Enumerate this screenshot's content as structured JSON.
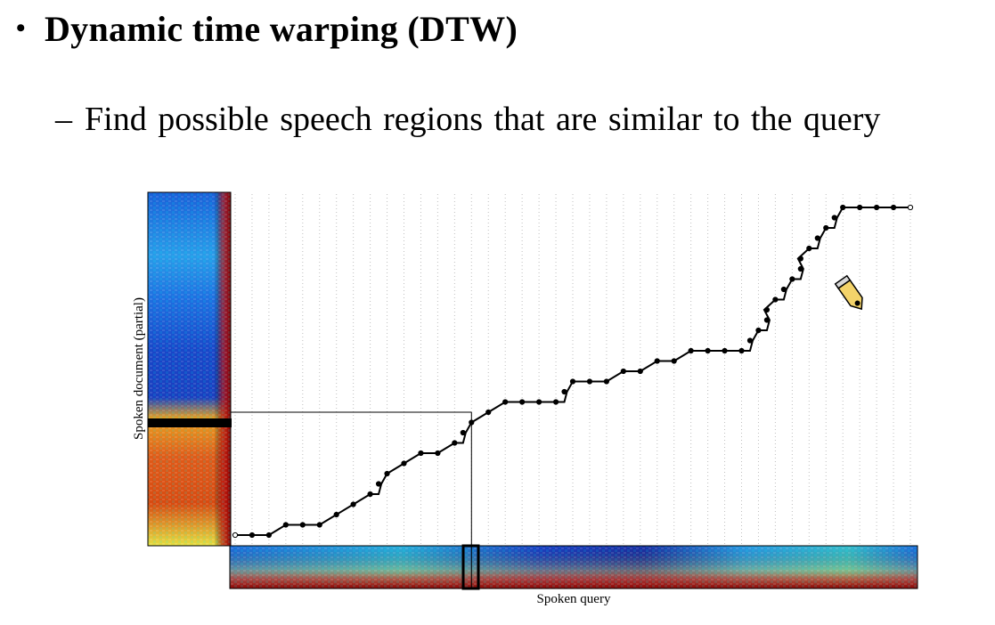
{
  "slide": {
    "bullet": "•",
    "title": "Dynamic time warping (DTW)",
    "sub_dash": "–",
    "subtitle": "Find possible speech regions that are similar to the query"
  },
  "figure": {
    "ylabel": "Spoken document (partial)",
    "xlabel": "Spoken query",
    "path": [
      [
        0,
        0
      ],
      [
        1,
        0
      ],
      [
        2,
        0
      ],
      [
        3,
        1
      ],
      [
        4,
        1
      ],
      [
        5,
        1
      ],
      [
        6,
        2
      ],
      [
        7,
        3
      ],
      [
        8,
        4
      ],
      [
        9,
        6
      ],
      [
        10,
        7
      ],
      [
        11,
        8
      ],
      [
        12,
        8
      ],
      [
        13,
        9
      ],
      [
        14,
        11
      ],
      [
        15,
        12
      ],
      [
        16,
        13
      ],
      [
        17,
        13
      ],
      [
        18,
        13
      ],
      [
        19,
        13
      ],
      [
        20,
        15
      ],
      [
        21,
        15
      ],
      [
        22,
        15
      ],
      [
        23,
        16
      ],
      [
        24,
        16
      ],
      [
        25,
        17
      ],
      [
        26,
        17
      ],
      [
        27,
        18
      ],
      [
        28,
        18
      ],
      [
        29,
        18
      ],
      [
        30,
        18
      ],
      [
        31,
        20
      ],
      [
        32,
        23
      ],
      [
        33,
        25
      ],
      [
        34,
        28
      ],
      [
        35,
        30
      ],
      [
        36,
        32
      ],
      [
        37,
        32
      ],
      [
        38,
        32
      ],
      [
        39,
        32
      ],
      [
        40,
        32
      ]
    ],
    "grid_columns": 41,
    "grid_rows": 33,
    "highlight_query_frame": 14,
    "highlight_doc_frame": 12,
    "colors": {
      "path": "#000000",
      "grid": "#bfbfbf",
      "highlight": "#000000"
    }
  }
}
